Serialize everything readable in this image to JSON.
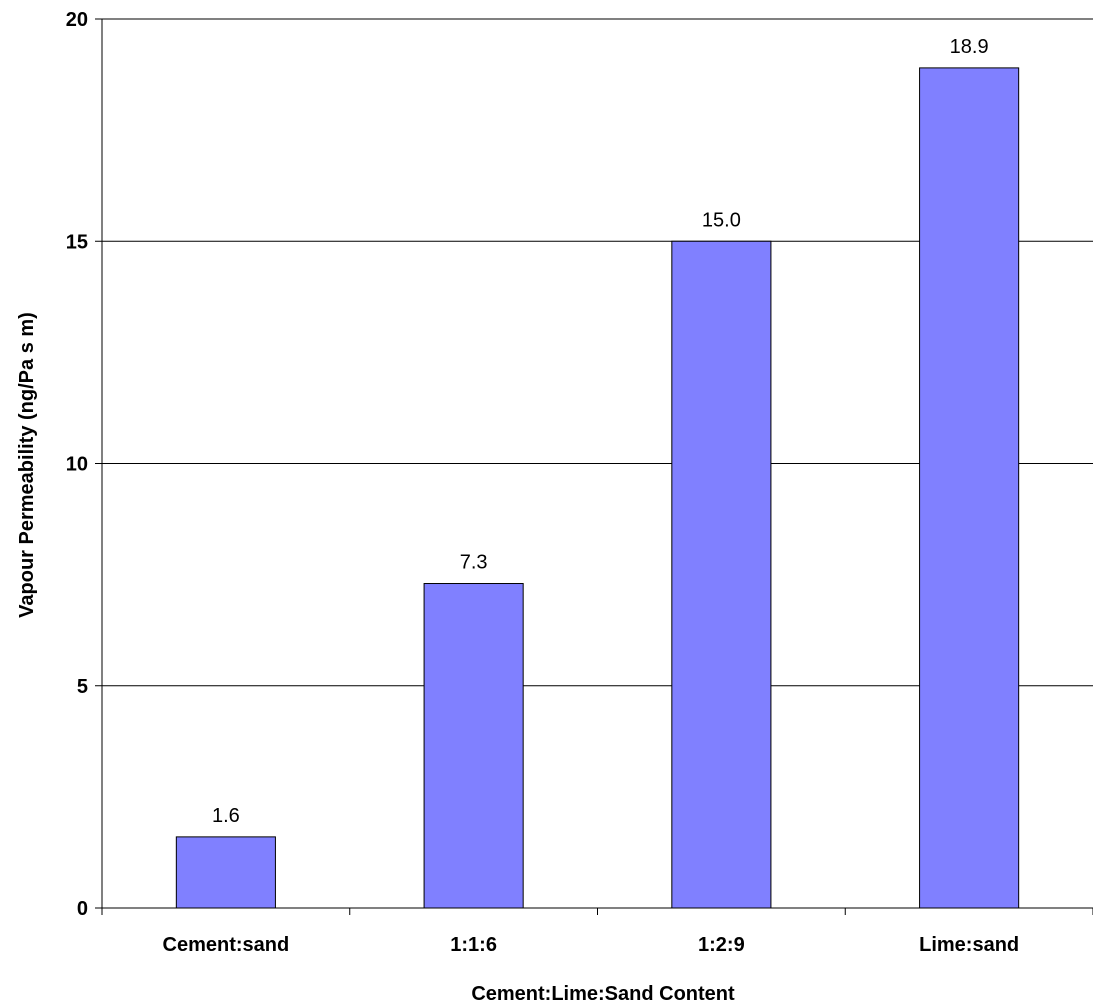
{
  "chart_data": {
    "type": "bar",
    "title": "",
    "xlabel": "Cement:Lime:Sand Content",
    "ylabel": "Vapour Permeability (ng/Pa s m)",
    "categories": [
      "Cement:sand",
      "1:1:6",
      "1:2:9",
      "Lime:sand"
    ],
    "values": [
      1.6,
      7.3,
      15.0,
      18.9
    ],
    "data_labels": [
      "1.6",
      "7.3",
      "15.0",
      "18.9"
    ],
    "ylim": [
      0,
      20
    ],
    "yticks": [
      0,
      5,
      10,
      15,
      20
    ],
    "ytick_labels": [
      "0",
      "5",
      "10",
      "15",
      "20"
    ],
    "grid": "horizontal",
    "legend": "none",
    "bar_color": "#8080ff",
    "bar_edge_color": "#000000"
  }
}
